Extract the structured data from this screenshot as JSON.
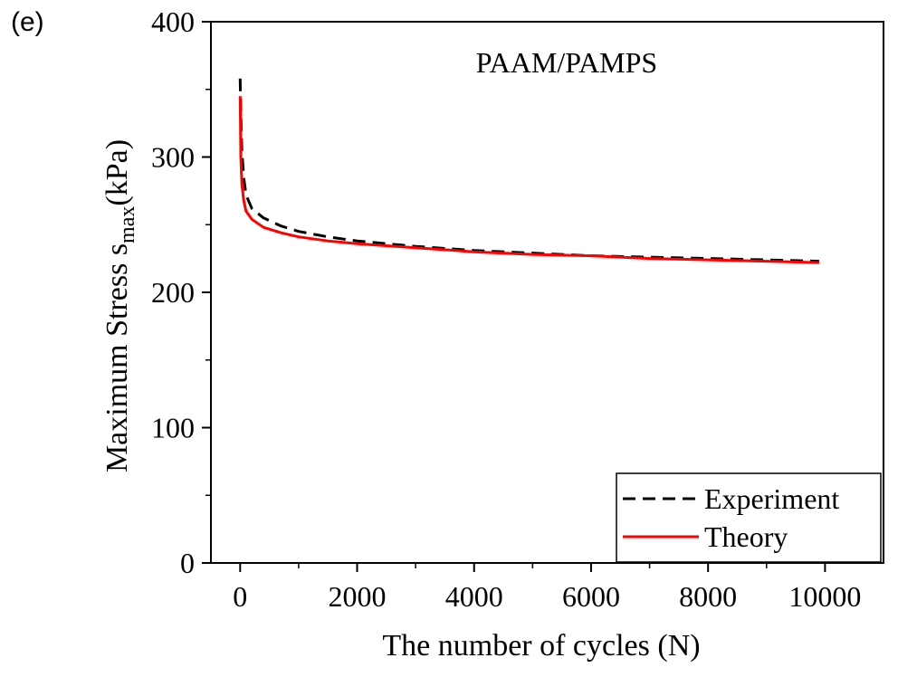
{
  "panel_label": "(e)",
  "chart_data": {
    "type": "line",
    "title": "PAAM/PAMPS",
    "xlabel": "The number of cycles (N)",
    "ylabel_main": "Maximum Stress s",
    "ylabel_sub": "max",
    "ylabel_unit": "(kPa)",
    "xlim": [
      -500,
      11000
    ],
    "ylim": [
      0,
      400
    ],
    "xticks": [
      0,
      2000,
      4000,
      6000,
      8000,
      10000
    ],
    "yticks": [
      0,
      100,
      200,
      300,
      400
    ],
    "legend_position": "bottom-right",
    "series": [
      {
        "name": "Experiment",
        "color": "#000000",
        "style": "dashed",
        "x": [
          0,
          10,
          30,
          60,
          100,
          200,
          400,
          700,
          1000,
          1500,
          2000,
          3000,
          4000,
          5000,
          6000,
          7000,
          8000,
          9000,
          9900
        ],
        "y": [
          358,
          330,
          305,
          285,
          272,
          262,
          255,
          249,
          245,
          241,
          238,
          234,
          231,
          229,
          227,
          226,
          225,
          224,
          223
        ]
      },
      {
        "name": "Theory",
        "color": "#ff0000",
        "style": "solid",
        "x": [
          0,
          10,
          30,
          60,
          100,
          200,
          400,
          700,
          1000,
          1500,
          2000,
          3000,
          4000,
          5000,
          6000,
          7000,
          8000,
          9000,
          9900
        ],
        "y": [
          345,
          300,
          280,
          268,
          260,
          254,
          248,
          244,
          241,
          238,
          236,
          233,
          230,
          228,
          227,
          225,
          224,
          223,
          222
        ]
      }
    ]
  }
}
